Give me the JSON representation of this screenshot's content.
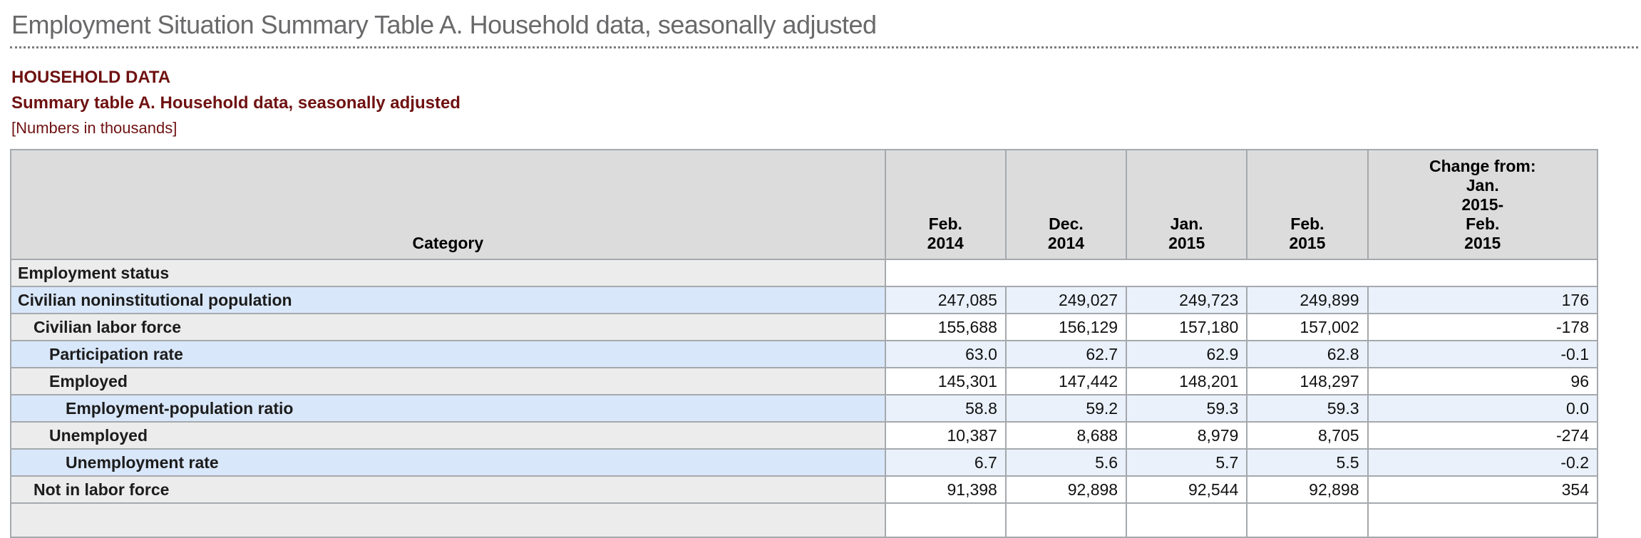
{
  "page_title": "Employment Situation Summary Table A. Household data, seasonally adjusted",
  "section": {
    "kicker": "HOUSEHOLD DATA",
    "subtitle": "Summary table A. Household data, seasonally adjusted",
    "note": "[Numbers in thousands]"
  },
  "table": {
    "columns": [
      {
        "key": "category",
        "label_lines": [
          "Category"
        ]
      },
      {
        "key": "feb-2014",
        "label_lines": [
          "Feb.",
          "2014"
        ]
      },
      {
        "key": "dec-2014",
        "label_lines": [
          "Dec.",
          "2014"
        ]
      },
      {
        "key": "jan-2015",
        "label_lines": [
          "Jan.",
          "2015"
        ]
      },
      {
        "key": "feb-2015",
        "label_lines": [
          "Feb.",
          "2015"
        ]
      },
      {
        "key": "change",
        "label_lines": [
          "Change from:",
          "Jan.",
          "2015-",
          "Feb.",
          "2015"
        ]
      }
    ],
    "rows": [
      {
        "label": "Employment status",
        "indent": 0,
        "tone": "gray",
        "type": "section",
        "values": [
          "",
          "",
          "",
          "",
          ""
        ]
      },
      {
        "label": "Civilian noninstitutional population",
        "indent": 0,
        "tone": "blue",
        "values": [
          "247,085",
          "249,027",
          "249,723",
          "249,899",
          "176"
        ]
      },
      {
        "label": "Civilian labor force",
        "indent": 1,
        "tone": "gray",
        "values": [
          "155,688",
          "156,129",
          "157,180",
          "157,002",
          "-178"
        ]
      },
      {
        "label": "Participation rate",
        "indent": 2,
        "tone": "blue",
        "values": [
          "63.0",
          "62.7",
          "62.9",
          "62.8",
          "-0.1"
        ]
      },
      {
        "label": "Employed",
        "indent": 2,
        "tone": "gray",
        "values": [
          "145,301",
          "147,442",
          "148,201",
          "148,297",
          "96"
        ]
      },
      {
        "label": "Employment-population ratio",
        "indent": 3,
        "tone": "blue",
        "values": [
          "58.8",
          "59.2",
          "59.3",
          "59.3",
          "0.0"
        ]
      },
      {
        "label": "Unemployed",
        "indent": 2,
        "tone": "gray",
        "values": [
          "10,387",
          "8,688",
          "8,979",
          "8,705",
          "-274"
        ]
      },
      {
        "label": "Unemployment rate",
        "indent": 3,
        "tone": "blue",
        "values": [
          "6.7",
          "5.6",
          "5.7",
          "5.5",
          "-0.2"
        ]
      },
      {
        "label": "Not in labor force",
        "indent": 1,
        "tone": "gray",
        "values": [
          "91,398",
          "92,898",
          "92,544",
          "92,898",
          "354"
        ]
      },
      {
        "label": "",
        "indent": 0,
        "tone": "gray",
        "type": "partial",
        "values": [
          "",
          "",
          "",
          "",
          ""
        ]
      }
    ]
  },
  "chart_data": {
    "type": "table",
    "title": "Summary table A. Household data, seasonally adjusted",
    "categories": [
      "Feb. 2014",
      "Dec. 2014",
      "Jan. 2015",
      "Feb. 2015",
      "Change from: Jan. 2015-Feb. 2015"
    ],
    "series": [
      {
        "name": "Civilian noninstitutional population",
        "values": [
          247085,
          249027,
          249723,
          249899,
          176
        ]
      },
      {
        "name": "Civilian labor force",
        "values": [
          155688,
          156129,
          157180,
          157002,
          -178
        ]
      },
      {
        "name": "Participation rate",
        "values": [
          63.0,
          62.7,
          62.9,
          62.8,
          -0.1
        ]
      },
      {
        "name": "Employed",
        "values": [
          145301,
          147442,
          148201,
          148297,
          96
        ]
      },
      {
        "name": "Employment-population ratio",
        "values": [
          58.8,
          59.2,
          59.3,
          59.3,
          0.0
        ]
      },
      {
        "name": "Unemployed",
        "values": [
          10387,
          8688,
          8979,
          8705,
          -274
        ]
      },
      {
        "name": "Unemployment rate",
        "values": [
          6.7,
          5.6,
          5.7,
          5.5,
          -0.2
        ]
      },
      {
        "name": "Not in labor force",
        "values": [
          91398,
          92898,
          92544,
          92898,
          354
        ]
      }
    ]
  },
  "colors": {
    "title_gray": "#69696b",
    "accent_maroon": "#6f1111",
    "header_gray": "#dcdcdc",
    "row_gray": "#ececec",
    "row_blue": "#d9e7fa",
    "row_blue_value": "#eaf1fb",
    "border_gray": "#a5a9ad"
  }
}
